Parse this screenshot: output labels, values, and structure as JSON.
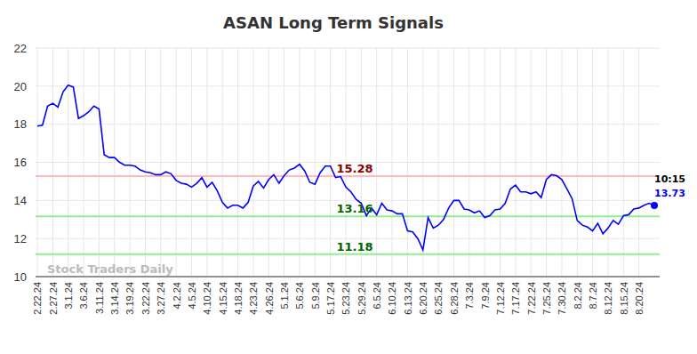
{
  "chart_data": {
    "type": "line",
    "title": "ASAN Long Term Signals",
    "watermark": "Stock Traders Daily",
    "categories": [
      "2.22.24",
      null,
      null,
      "2.27.24",
      null,
      null,
      "3.1.24",
      null,
      null,
      "3.6.24",
      null,
      null,
      "3.11.24",
      null,
      null,
      "3.14.24",
      null,
      null,
      "3.19.24",
      null,
      null,
      "3.22.24",
      null,
      null,
      "3.27.24",
      null,
      null,
      "4.2.24",
      null,
      null,
      "4.5.24",
      null,
      null,
      "4.10.24",
      null,
      null,
      "4.15.24",
      null,
      null,
      "4.18.24",
      null,
      null,
      "4.23.24",
      null,
      null,
      "4.26.24",
      null,
      null,
      "5.1.24",
      null,
      null,
      "5.6.24",
      null,
      null,
      "5.9.24",
      null,
      null,
      "5.17.24",
      null,
      null,
      "5.23.24",
      null,
      null,
      "5.29.24",
      null,
      null,
      "6.5.24",
      null,
      null,
      "6.10.24",
      null,
      null,
      "6.13.24",
      null,
      null,
      "6.20.24",
      null,
      null,
      "6.25.24",
      null,
      null,
      "6.28.24",
      null,
      null,
      "7.3.24",
      null,
      null,
      "7.9.24",
      null,
      null,
      "7.12.24",
      null,
      null,
      "7.17.24",
      null,
      null,
      "7.22.24",
      null,
      null,
      "7.25.24",
      null,
      null,
      "7.30.24",
      null,
      null,
      "8.2.24",
      null,
      null,
      "8.7.24",
      null,
      null,
      "8.12.24",
      null,
      null,
      "8.15.24",
      null,
      null,
      "8.20.24",
      null,
      null,
      null
    ],
    "values": [
      17.9,
      17.95,
      18.95,
      19.1,
      18.9,
      19.7,
      20.05,
      19.95,
      18.3,
      18.45,
      18.65,
      18.95,
      18.8,
      16.4,
      16.25,
      16.25,
      16.0,
      15.85,
      15.85,
      15.8,
      15.6,
      15.5,
      15.45,
      15.35,
      15.35,
      15.5,
      15.4,
      15.05,
      14.9,
      14.85,
      14.7,
      14.9,
      15.2,
      14.7,
      14.95,
      14.5,
      13.9,
      13.6,
      13.75,
      13.75,
      13.6,
      13.9,
      14.75,
      15.0,
      14.65,
      15.1,
      15.35,
      14.9,
      15.3,
      15.6,
      15.7,
      15.9,
      15.55,
      14.95,
      14.85,
      15.45,
      15.8,
      15.8,
      15.2,
      15.25,
      14.7,
      14.45,
      14.05,
      13.85,
      13.2,
      13.6,
      13.25,
      13.85,
      13.5,
      13.45,
      13.3,
      13.3,
      12.4,
      12.35,
      12.0,
      11.4,
      13.1,
      12.55,
      12.7,
      13.0,
      13.6,
      14.0,
      14.0,
      13.55,
      13.5,
      13.35,
      13.45,
      13.1,
      13.2,
      13.5,
      13.55,
      13.85,
      14.6,
      14.8,
      14.45,
      14.45,
      14.35,
      14.45,
      14.15,
      15.1,
      15.35,
      15.3,
      15.1,
      14.6,
      14.1,
      12.95,
      12.7,
      12.6,
      12.4,
      12.8,
      12.25,
      12.55,
      12.95,
      12.75,
      13.2,
      13.25,
      13.55,
      13.6,
      13.75,
      13.85,
      13.73
    ],
    "color": "#0000ff",
    "ylim": [
      10,
      22
    ],
    "yticks": [
      10,
      12,
      14,
      16,
      18,
      20,
      22
    ],
    "grid": true,
    "levels": [
      {
        "value": 15.28,
        "color": "#ffbbbb",
        "label_color": "#8b0000"
      },
      {
        "value": 13.16,
        "color": "#90ee90",
        "label_color": "#006400"
      },
      {
        "value": 11.18,
        "color": "#90ee90",
        "label_color": "#006400"
      }
    ],
    "last_time": "10:15"
  }
}
